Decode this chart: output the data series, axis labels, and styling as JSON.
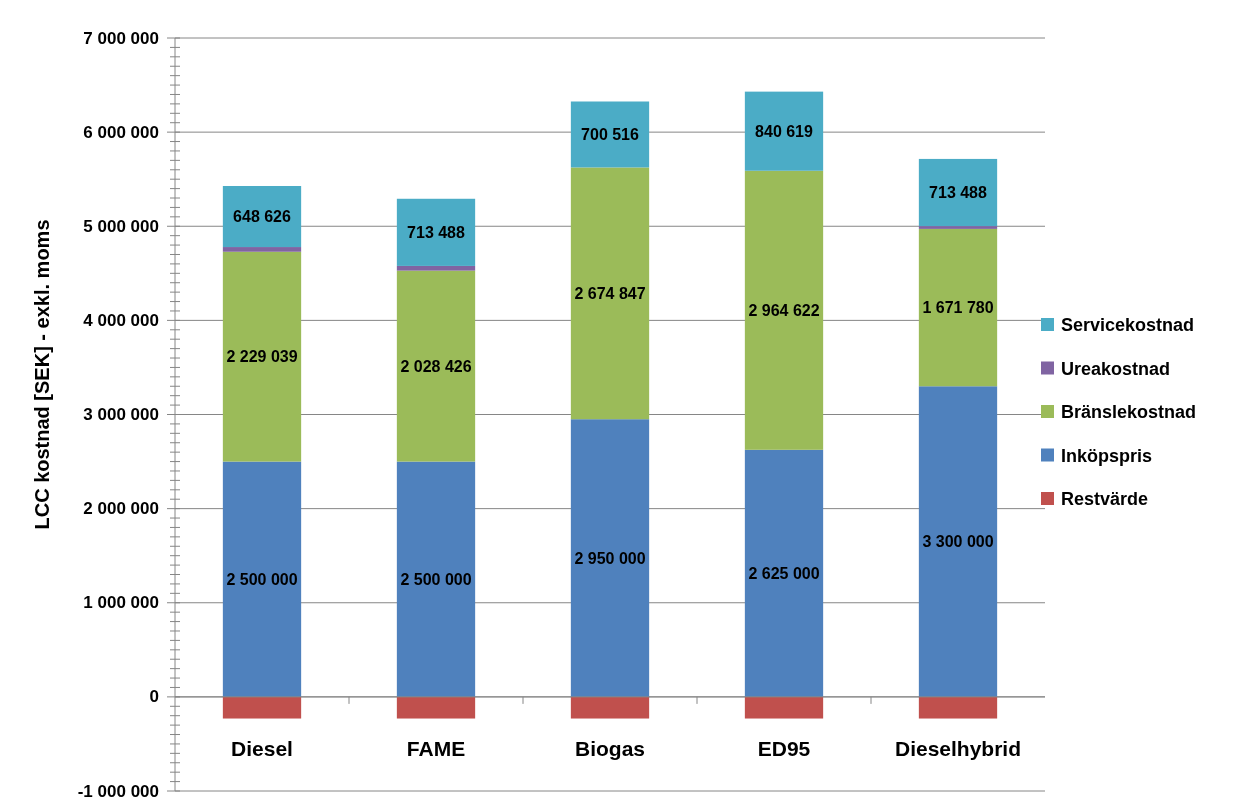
{
  "chart_data": {
    "type": "bar",
    "stacked": true,
    "ylabel": "LCC kostnad [SEK] - exkl. moms",
    "categories": [
      "Diesel",
      "FAME",
      "Biogas",
      "ED95",
      "Dieselhybrid"
    ],
    "series": [
      {
        "name": "Restvärde",
        "color": "#c0504d",
        "values": [
          -230000,
          -230000,
          -230000,
          -230000,
          -230000
        ]
      },
      {
        "name": "Inköpspris",
        "color": "#4f81bd",
        "values": [
          2500000,
          2500000,
          2950000,
          2625000,
          3300000
        ],
        "value_labels": [
          "2 500 000",
          "2 500 000",
          "2 950 000",
          "2 625 000",
          "3 300 000"
        ]
      },
      {
        "name": "Bränslekostnad",
        "color": "#9bbb59",
        "values": [
          2229039,
          2028426,
          2674847,
          2964622,
          1671780
        ],
        "value_labels": [
          "2 229 039",
          "2 028 426",
          "2 674 847",
          "2 964 622",
          "1 671 780"
        ]
      },
      {
        "name": "Ureakostnad",
        "color": "#8064a2",
        "values": [
          50000,
          50000,
          0,
          0,
          30000
        ]
      },
      {
        "name": "Servicekostnad",
        "color": "#4bacc6",
        "values": [
          648626,
          713488,
          700516,
          840619,
          713488
        ],
        "value_labels": [
          "648 626",
          "713 488",
          "700 516",
          "840 619",
          "713 488"
        ]
      }
    ],
    "ylim": [
      -1000000,
      7000000
    ],
    "yticks": [
      {
        "value": -1000000,
        "label": "-1 000 000"
      },
      {
        "value": -900000,
        "label": null
      },
      {
        "value": -800000,
        "label": null
      },
      {
        "value": -700000,
        "label": null
      },
      {
        "value": -600000,
        "label": null
      },
      {
        "value": -500000,
        "label": null
      },
      {
        "value": -400000,
        "label": null
      },
      {
        "value": -300000,
        "label": null
      },
      {
        "value": -200000,
        "label": null
      },
      {
        "value": -100000,
        "label": null
      },
      0,
      {
        "value": 100000,
        "label": null
      },
      {
        "value": 200000,
        "label": null
      },
      {
        "value": 300000,
        "label": null
      },
      {
        "value": 400000,
        "label": null
      },
      {
        "value": 500000,
        "label": null
      },
      {
        "value": 600000,
        "label": null
      },
      {
        "value": 700000,
        "label": null
      },
      {
        "value": 800000,
        "label": null
      },
      {
        "value": 900000,
        "label": null
      },
      {
        "value": 1000000,
        "label": "1 000 000"
      },
      {
        "value": 1100000,
        "label": null
      },
      {
        "value": 1200000,
        "label": null
      },
      {
        "value": 1300000,
        "label": null
      },
      {
        "value": 1400000,
        "label": null
      },
      {
        "value": 1500000,
        "label": null
      },
      {
        "value": 1600000,
        "label": null
      },
      {
        "value": 1700000,
        "label": null
      },
      {
        "value": 1800000,
        "label": null
      },
      {
        "value": 1900000,
        "label": null
      },
      {
        "value": 2000000,
        "label": "2 000 000"
      },
      {
        "value": 2100000,
        "label": null
      },
      {
        "value": 2200000,
        "label": null
      },
      {
        "value": 2300000,
        "label": null
      },
      {
        "value": 2400000,
        "label": null
      },
      {
        "value": 2500000,
        "label": null
      },
      {
        "value": 2600000,
        "label": null
      },
      {
        "value": 2700000,
        "label": null
      },
      {
        "value": 2800000,
        "label": null
      },
      {
        "value": 2900000,
        "label": null
      },
      {
        "value": 3000000,
        "label": "3 000 000"
      },
      {
        "value": 3100000,
        "label": null
      },
      {
        "value": 3200000,
        "label": null
      },
      {
        "value": 3300000,
        "label": null
      },
      {
        "value": 3400000,
        "label": null
      },
      {
        "value": 3500000,
        "label": null
      },
      {
        "value": 3600000,
        "label": null
      },
      {
        "value": 3700000,
        "label": null
      },
      {
        "value": 3800000,
        "label": null
      },
      {
        "value": 3900000,
        "label": null
      },
      {
        "value": 4000000,
        "label": "4 000 000"
      },
      {
        "value": 4100000,
        "label": null
      },
      {
        "value": 4200000,
        "label": null
      },
      {
        "value": 4300000,
        "label": null
      },
      {
        "value": 4400000,
        "label": null
      },
      {
        "value": 4500000,
        "label": null
      },
      {
        "value": 4600000,
        "label": null
      },
      {
        "value": 4700000,
        "label": null
      },
      {
        "value": 4800000,
        "label": null
      },
      {
        "value": 4900000,
        "label": null
      },
      {
        "value": 5000000,
        "label": "5 000 000"
      },
      {
        "value": 5100000,
        "label": null
      },
      {
        "value": 5200000,
        "label": null
      },
      {
        "value": 5300000,
        "label": null
      },
      {
        "value": 5400000,
        "label": null
      },
      {
        "value": 5500000,
        "label": null
      },
      {
        "value": 5600000,
        "label": null
      },
      {
        "value": 5700000,
        "label": null
      },
      {
        "value": 5800000,
        "label": null
      },
      {
        "value": 5900000,
        "label": null
      },
      {
        "value": 6000000,
        "label": "6 000 000"
      },
      {
        "value": 6100000,
        "label": null
      },
      {
        "value": 6200000,
        "label": null
      },
      {
        "value": 6300000,
        "label": null
      },
      {
        "value": 6400000,
        "label": null
      },
      {
        "value": 6500000,
        "label": null
      },
      {
        "value": 6600000,
        "label": null
      },
      {
        "value": 6700000,
        "label": null
      },
      {
        "value": 6800000,
        "label": null
      },
      {
        "value": 6900000,
        "label": null
      },
      {
        "value": 7000000,
        "label": "7 000 000"
      }
    ],
    "grid": "y",
    "legend": "right"
  }
}
